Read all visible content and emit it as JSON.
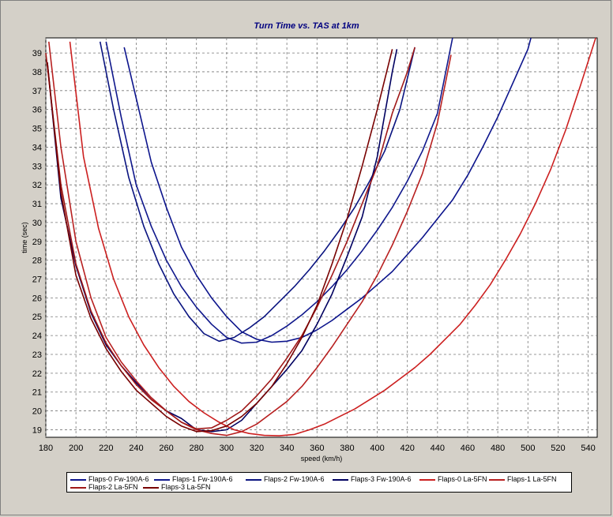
{
  "chart_data": {
    "type": "line",
    "title": "Turn Time vs. TAS at 1km",
    "xlabel": "speed (km/h)",
    "ylabel": "time (sec)",
    "xlim": [
      180,
      546
    ],
    "ylim": [
      18.6,
      39.8
    ],
    "xticks": [
      180,
      200,
      220,
      240,
      260,
      280,
      300,
      320,
      340,
      360,
      380,
      400,
      420,
      440,
      460,
      480,
      500,
      520,
      540
    ],
    "yticks": [
      19,
      20,
      21,
      22,
      23,
      24,
      25,
      26,
      27,
      28,
      29,
      30,
      31,
      32,
      33,
      34,
      35,
      36,
      37,
      38,
      39
    ],
    "grid": true,
    "legend_position": "bottom",
    "series": [
      {
        "name": "Flaps-0  Fw-190A-6",
        "color": "#0c148c",
        "x": [
          232,
          240,
          250,
          260,
          270,
          280,
          290,
          300,
          310,
          320,
          330,
          340,
          350,
          360,
          370,
          380,
          390,
          400,
          410,
          420,
          430,
          440,
          450,
          460,
          470,
          480,
          490,
          500,
          502
        ],
        "y": [
          39.3,
          36.6,
          33.2,
          30.8,
          28.7,
          27.2,
          26.0,
          25.0,
          24.2,
          23.8,
          23.65,
          23.7,
          23.9,
          24.3,
          24.8,
          25.4,
          26.0,
          26.7,
          27.4,
          28.3,
          29.2,
          30.2,
          31.2,
          32.5,
          34.0,
          35.6,
          37.4,
          39.2,
          39.8
        ]
      },
      {
        "name": "Flaps-1  Fw-190A-6",
        "color": "#10188c",
        "x": [
          220,
          230,
          240,
          250,
          260,
          270,
          280,
          290,
          300,
          310,
          320,
          330,
          340,
          350,
          360,
          370,
          380,
          390,
          400,
          410,
          420,
          430,
          440,
          450
        ],
        "y": [
          39.6,
          35.6,
          32.0,
          29.8,
          28.0,
          26.6,
          25.5,
          24.6,
          23.9,
          23.6,
          23.65,
          24.0,
          24.5,
          25.1,
          25.8,
          26.6,
          27.5,
          28.5,
          29.6,
          30.8,
          32.2,
          33.8,
          35.8,
          39.8
        ]
      },
      {
        "name": "Flaps-2  Fw-190A-6",
        "color": "#0a1480",
        "x": [
          216,
          225,
          235,
          245,
          255,
          265,
          275,
          285,
          295,
          305,
          315,
          325,
          335,
          345,
          355,
          365,
          375,
          385,
          395,
          405,
          415,
          425
        ],
        "y": [
          39.6,
          36.0,
          32.4,
          29.8,
          27.8,
          26.2,
          25.0,
          24.1,
          23.7,
          23.9,
          24.4,
          25.0,
          25.8,
          26.6,
          27.5,
          28.5,
          29.6,
          30.8,
          32.2,
          33.8,
          36.0,
          39.3
        ]
      },
      {
        "name": "Flaps-3  Fw-190A-6",
        "color": "#000060",
        "x": [
          181,
          190,
          200,
          210,
          220,
          230,
          240,
          250,
          260,
          270,
          280,
          290,
          300,
          310,
          320,
          330,
          340,
          350,
          360,
          370,
          380,
          390,
          400,
          410,
          413
        ],
        "y": [
          38.5,
          31.3,
          27.7,
          25.2,
          23.5,
          22.4,
          21.5,
          20.7,
          20.0,
          19.6,
          19.0,
          18.9,
          19.0,
          19.5,
          20.4,
          21.3,
          22.2,
          23.2,
          24.6,
          26.2,
          28.2,
          30.3,
          33.5,
          38.0,
          39.2
        ]
      },
      {
        "name": "Flaps-0  La-5FN",
        "color": "#cc2020",
        "x": [
          196,
          205,
          215,
          225,
          235,
          245,
          255,
          265,
          275,
          285,
          295,
          305,
          315,
          325,
          335,
          345,
          355,
          365,
          375,
          385,
          395,
          405,
          415,
          425,
          435,
          445,
          455,
          465,
          475,
          485,
          495,
          505,
          515,
          525,
          535,
          545
        ],
        "y": [
          39.6,
          33.5,
          29.7,
          27.0,
          25.0,
          23.5,
          22.3,
          21.3,
          20.5,
          19.9,
          19.4,
          19.0,
          18.8,
          18.7,
          18.68,
          18.75,
          19.0,
          19.3,
          19.7,
          20.1,
          20.6,
          21.1,
          21.7,
          22.3,
          23.0,
          23.8,
          24.6,
          25.6,
          26.7,
          28.0,
          29.4,
          31.0,
          32.8,
          34.9,
          37.3,
          39.8
        ]
      },
      {
        "name": "Flaps-1  La-5FN",
        "color": "#b82020",
        "x": [
          182,
          190,
          200,
          210,
          220,
          230,
          240,
          250,
          260,
          270,
          280,
          290,
          300,
          310,
          320,
          330,
          340,
          350,
          360,
          370,
          380,
          390,
          400,
          410,
          420,
          430,
          440,
          449
        ],
        "y": [
          39.6,
          34.0,
          29.0,
          26.0,
          23.9,
          22.6,
          21.6,
          20.7,
          20.0,
          19.4,
          19.0,
          18.8,
          18.7,
          18.9,
          19.3,
          19.9,
          20.5,
          21.3,
          22.3,
          23.4,
          24.6,
          25.8,
          27.2,
          28.8,
          30.6,
          32.6,
          35.3,
          38.9
        ]
      },
      {
        "name": "Flaps-2  La-5FN",
        "color": "#a01818",
        "x": [
          180,
          190,
          200,
          210,
          220,
          230,
          240,
          250,
          260,
          270,
          280,
          290,
          300,
          310,
          320,
          330,
          340,
          350,
          360,
          370,
          380,
          390,
          400,
          410,
          420,
          425
        ],
        "y": [
          39.0,
          32.0,
          27.8,
          25.3,
          23.6,
          22.4,
          21.4,
          20.6,
          20.0,
          19.4,
          19.05,
          19.1,
          19.5,
          20.0,
          20.8,
          21.7,
          22.8,
          24.0,
          25.5,
          27.2,
          29.0,
          31.0,
          33.0,
          35.8,
          38.0,
          39.3
        ]
      },
      {
        "name": "Flaps-3  La-5FN",
        "color": "#780000",
        "x": [
          181,
          190,
          200,
          210,
          220,
          230,
          240,
          250,
          260,
          270,
          280,
          290,
          300,
          310,
          320,
          330,
          340,
          350,
          360,
          370,
          380,
          390,
          400,
          410
        ],
        "y": [
          38.5,
          31.6,
          27.2,
          24.9,
          23.3,
          22.1,
          21.1,
          20.4,
          19.7,
          19.2,
          18.9,
          18.95,
          19.2,
          19.7,
          20.4,
          21.3,
          22.5,
          23.9,
          25.6,
          27.8,
          30.2,
          33.0,
          36.0,
          39.2
        ]
      }
    ]
  }
}
